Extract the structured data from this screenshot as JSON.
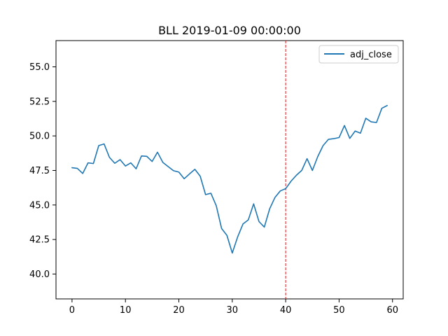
{
  "chart_data": {
    "type": "line",
    "title": "BLL 2019-01-09 00:00:00",
    "xlabel": "",
    "ylabel": "",
    "xlim": [
      -3,
      62
    ],
    "ylim": [
      38.2,
      56.9
    ],
    "x_ticks": [
      0,
      10,
      20,
      30,
      40,
      50,
      60
    ],
    "y_ticks": [
      40.0,
      42.5,
      45.0,
      47.5,
      50.0,
      52.5,
      55.0
    ],
    "x_tick_labels": [
      "0",
      "10",
      "20",
      "30",
      "40",
      "50",
      "60"
    ],
    "y_tick_labels": [
      "40.0",
      "42.5",
      "45.0",
      "47.5",
      "50.0",
      "52.5",
      "55.0"
    ],
    "grid": false,
    "legend_position": "top-right",
    "vline": {
      "x": 40,
      "color": "#e8131a",
      "style": "dashed"
    },
    "series": [
      {
        "name": "adj_close",
        "color": "#1f77b4",
        "x": [
          0,
          1,
          2,
          3,
          4,
          5,
          6,
          7,
          8,
          9,
          10,
          11,
          12,
          13,
          14,
          15,
          16,
          17,
          18,
          19,
          20,
          21,
          22,
          23,
          24,
          25,
          26,
          27,
          28,
          29,
          30,
          31,
          32,
          33,
          34,
          35,
          36,
          37,
          38,
          39,
          40,
          41,
          42,
          43,
          44,
          45,
          46,
          47,
          48,
          49,
          50,
          51,
          52,
          53,
          54,
          55,
          56,
          57,
          58,
          59
        ],
        "y": [
          47.7,
          47.65,
          47.28,
          48.05,
          48.0,
          49.3,
          49.42,
          48.45,
          48.02,
          48.28,
          47.82,
          48.05,
          47.62,
          48.55,
          48.52,
          48.15,
          48.82,
          48.08,
          47.78,
          47.48,
          47.38,
          46.9,
          47.25,
          47.58,
          47.08,
          45.75,
          45.85,
          44.95,
          43.3,
          42.8,
          41.52,
          42.68,
          43.62,
          43.92,
          45.08,
          43.8,
          43.4,
          44.72,
          45.55,
          46.02,
          46.18,
          46.72,
          47.15,
          47.5,
          48.35,
          47.5,
          48.5,
          49.3,
          49.75,
          49.8,
          49.88,
          50.75,
          49.82,
          50.35,
          50.2,
          51.28,
          51.02,
          50.97,
          52.0,
          52.2
        ]
      }
    ]
  }
}
